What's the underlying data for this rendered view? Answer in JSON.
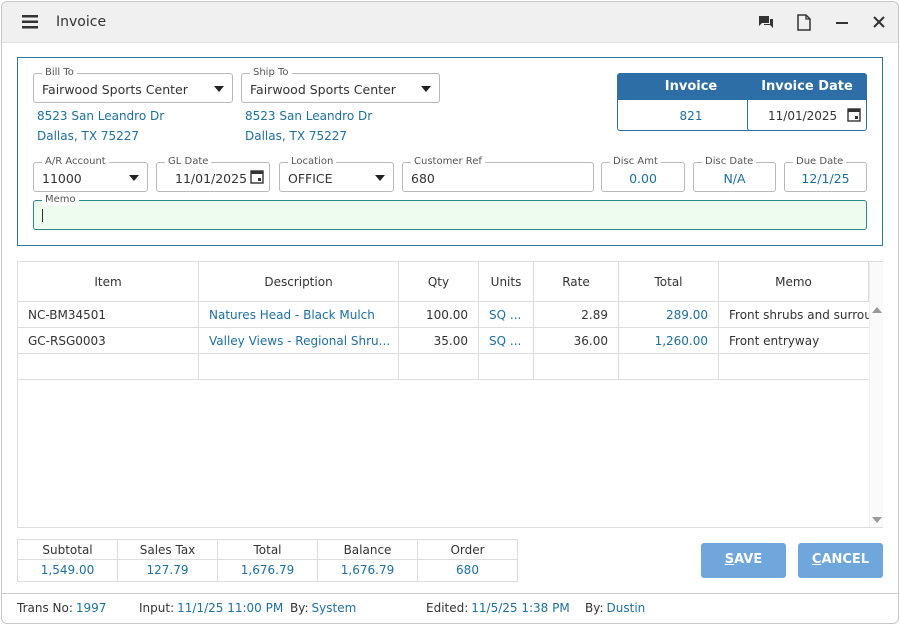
{
  "window": {
    "title": "Invoice"
  },
  "bill_to": {
    "label": "Bill To",
    "name": "Fairwood Sports Center",
    "address": [
      "8523 San Leandro Dr",
      "Dallas, TX 75227"
    ]
  },
  "ship_to": {
    "label": "Ship To",
    "name": "Fairwood Sports Center",
    "address": [
      "8523 San Leandro Dr",
      "Dallas, TX 75227"
    ]
  },
  "invoice": {
    "label": "Invoice",
    "value": "821"
  },
  "invoice_date": {
    "label": "Invoice Date",
    "value": "11/01/2025"
  },
  "fields": [
    {
      "label": "A/R Account",
      "value": "11000"
    },
    {
      "label": "GL Date",
      "value": "11/01/2025"
    },
    {
      "label": "Location",
      "value": "OFFICE"
    },
    {
      "label": "Customer Ref",
      "value": "680"
    },
    {
      "label": "Disc Amt",
      "value": "0.00"
    },
    {
      "label": "Disc Date",
      "value": "N/A"
    },
    {
      "label": "Due Date",
      "value": "12/1/25"
    }
  ],
  "memo": {
    "label": "Memo"
  },
  "table": {
    "columns": [
      "Item",
      "Description",
      "Qty",
      "Units",
      "Rate",
      "Total",
      "Memo"
    ],
    "rows": [
      [
        "NC-BM34501",
        "Natures Head - Black Mulch",
        "100.00",
        "SQ ...",
        "2.89",
        "289.00",
        "Front shrubs and surround"
      ],
      [
        "GC-RSG0003",
        "Valley Views  - Regional Shru...",
        "35.00",
        "SQ ...",
        "36.00",
        "1,260.00",
        "Front entryway"
      ]
    ]
  },
  "totals": {
    "columns": [
      "Subtotal",
      "Sales Tax",
      "Total",
      "Balance",
      "Order"
    ],
    "values": [
      "1,549.00",
      "127.79",
      "1,676.79",
      "1,676.79",
      "680"
    ]
  },
  "buttons": {
    "save": "SAVE",
    "cancel": "CANCEL"
  },
  "footer": [
    {
      "label": "Trans No:",
      "value": "1997"
    },
    {
      "label": "Input:",
      "value": "11/1/25 11:00 PM"
    },
    {
      "label": "By:",
      "value": "System"
    },
    {
      "label": "Edited:",
      "value": "11/5/25 1:38 PM"
    },
    {
      "label": "By:",
      "value": "Dustin"
    }
  ]
}
